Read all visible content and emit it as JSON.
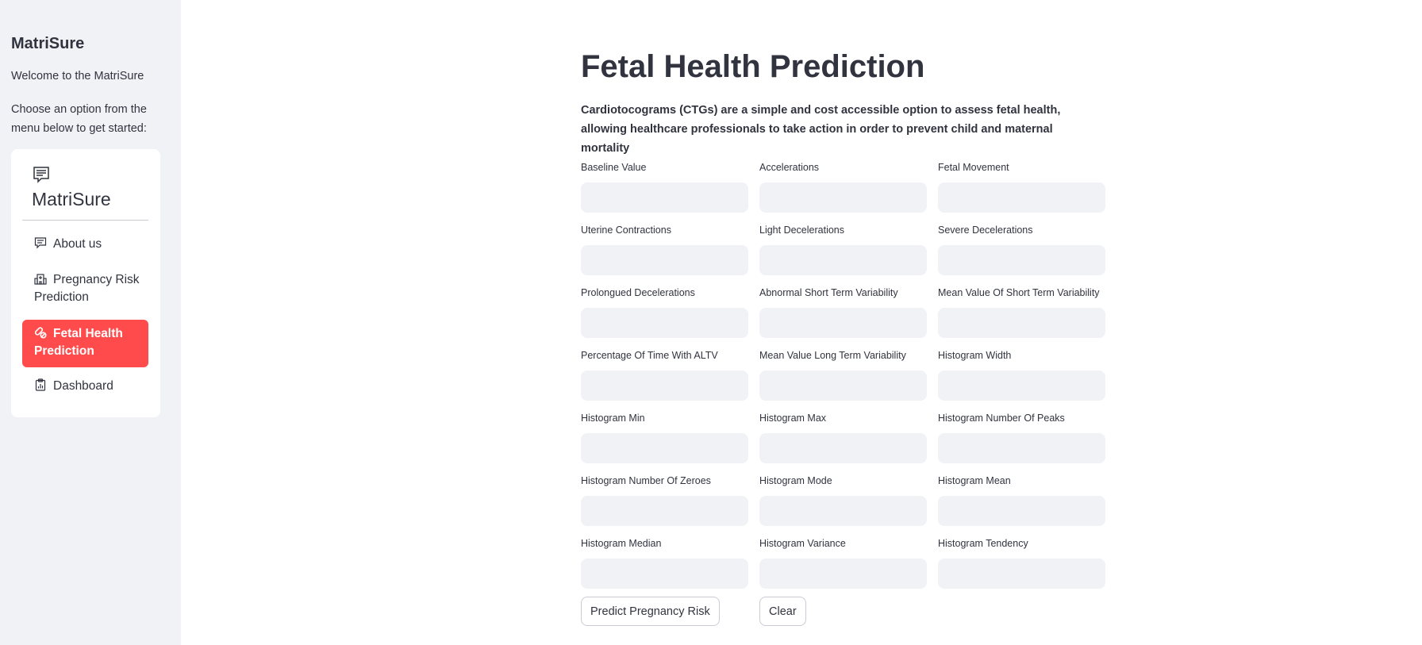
{
  "sidebar": {
    "title": "MatriSure",
    "welcome": "Welcome to the MatriSure",
    "instruction": "Choose an option from the menu below to get started:",
    "menu": {
      "title": "MatriSure",
      "items": [
        {
          "label": "About us",
          "icon": "chat-icon"
        },
        {
          "label": "Pregnancy Risk Prediction",
          "icon": "hospital-icon"
        },
        {
          "label": "Fetal Health Prediction",
          "icon": "capsule-icon",
          "active": true
        },
        {
          "label": "Dashboard",
          "icon": "clipboard-data-icon"
        }
      ]
    },
    "accent_color": "#ff4b4b"
  },
  "main": {
    "title": "Fetal Health Prediction",
    "description": "Cardiotocograms (CTGs) are a simple and cost accessible option to assess fetal health, allowing healthcare professionals to take action in order to prevent child and maternal mortality",
    "fields": [
      {
        "label": "Baseline Value",
        "value": ""
      },
      {
        "label": "Accelerations",
        "value": ""
      },
      {
        "label": "Fetal Movement",
        "value": ""
      },
      {
        "label": "Uterine Contractions",
        "value": ""
      },
      {
        "label": "Light Decelerations",
        "value": ""
      },
      {
        "label": "Severe Decelerations",
        "value": ""
      },
      {
        "label": "Prolongued Decelerations",
        "value": ""
      },
      {
        "label": "Abnormal Short Term Variability",
        "value": ""
      },
      {
        "label": "Mean Value Of Short Term Variability",
        "value": ""
      },
      {
        "label": "Percentage Of Time With ALTV",
        "value": ""
      },
      {
        "label": "Mean Value Long Term Variability",
        "value": ""
      },
      {
        "label": "Histogram Width",
        "value": ""
      },
      {
        "label": "Histogram Min",
        "value": ""
      },
      {
        "label": "Histogram Max",
        "value": ""
      },
      {
        "label": "Histogram Number Of Peaks",
        "value": ""
      },
      {
        "label": "Histogram Number Of Zeroes",
        "value": ""
      },
      {
        "label": "Histogram Mode",
        "value": ""
      },
      {
        "label": "Histogram Mean",
        "value": ""
      },
      {
        "label": "Histogram Median",
        "value": ""
      },
      {
        "label": "Histogram Variance",
        "value": ""
      },
      {
        "label": "Histogram Tendency",
        "value": ""
      }
    ],
    "predict_button": "Predict Pregnancy Risk",
    "clear_button": "Clear"
  }
}
